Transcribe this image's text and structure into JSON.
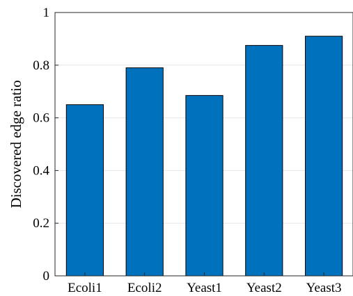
{
  "chart_data": {
    "type": "bar",
    "categories": [
      "Ecoli1",
      "Ecoli2",
      "Yeast1",
      "Yeast2",
      "Yeast3"
    ],
    "values": [
      0.65,
      0.79,
      0.685,
      0.875,
      0.91
    ],
    "xlabel": "",
    "ylabel": "Discovered edge ratio",
    "ylim": [
      0,
      1
    ],
    "yticks": [
      0,
      0.2,
      0.4,
      0.6,
      0.8,
      1
    ],
    "ytick_labels": [
      "0",
      "0.2",
      "0.4",
      "0.6",
      "0.8",
      "1"
    ],
    "grid": "horizontal",
    "bar_color": "#0072BD",
    "bar_edge_color": "#000000"
  }
}
